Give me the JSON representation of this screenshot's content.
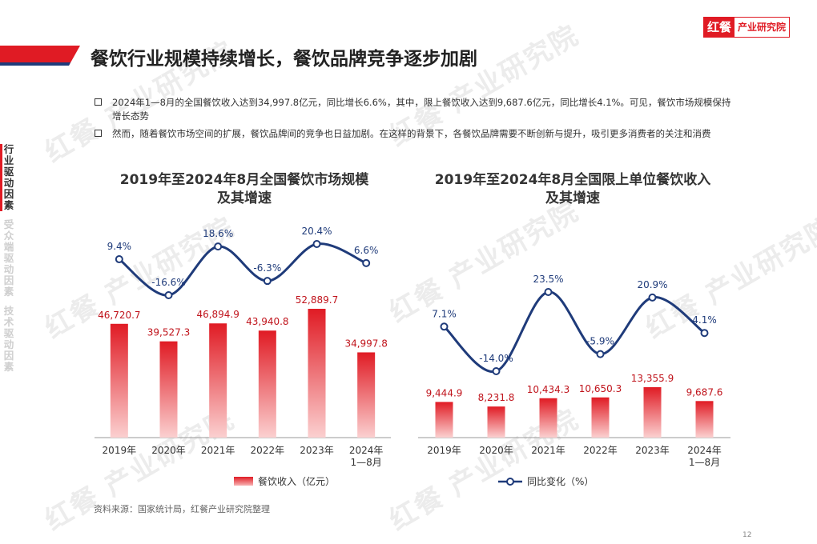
{
  "brand": {
    "logo_mark": "红餐",
    "logo_text": "产业研究院",
    "watermark": "红餐 产业研究院",
    "accent": "#e01b24",
    "navy": "#1f3b7a"
  },
  "header": {
    "title": "餐饮行业规模持续增长，餐饮品牌竞争逐步加剧"
  },
  "bullets": [
    "2024年1—8月的全国餐饮收入达到34,997.8亿元，同比增长6.6%，其中，限上餐饮收入达到9,687.6亿元，同比增长4.1%。可见，餐饮市场规模保持增长态势",
    "然而，随着餐饮市场空间的扩展，餐饮品牌间的竞争也日益加剧。在这样的背景下，各餐饮品牌需要不断创新与提升，吸引更多消费者的关注和消费"
  ],
  "sidebar": {
    "items": [
      {
        "label": "行业驱动因素",
        "active": true
      },
      {
        "label": "受众端驱动因素",
        "active": false
      },
      {
        "label": "技术驱动因素",
        "active": false
      }
    ]
  },
  "chart_data": [
    {
      "type": "bar",
      "title": "2019年至2024年8月全国餐饮市场规模及其增速",
      "title_lines": [
        "2019年至2024年8月全国餐饮市场规模",
        "及其增速"
      ],
      "categories": [
        "2019年",
        "2020年",
        "2021年",
        "2022年",
        "2023年",
        "2024年\n1—8月"
      ],
      "series": [
        {
          "name": "餐饮收入（亿元）",
          "type": "bar",
          "values": [
            46720.7,
            39527.3,
            46894.9,
            43940.8,
            52889.7,
            34997.8
          ],
          "labels": [
            "46,720.7",
            "39,527.3",
            "46,894.9",
            "43,940.8",
            "52,889.7",
            "34,997.8"
          ]
        },
        {
          "name": "同比变化（%）",
          "type": "line",
          "values": [
            9.4,
            -16.6,
            18.6,
            -6.3,
            20.4,
            6.6
          ],
          "labels": [
            "9.4%",
            "-16.6%",
            "18.6%",
            "-6.3%",
            "20.4%",
            "6.6%"
          ]
        }
      ],
      "legend": "bottom"
    },
    {
      "type": "bar",
      "title": "2019年至2024年8月全国限上单位餐饮收入及其增速",
      "title_lines": [
        "2019年至2024年8月全国限上单位餐饮收入",
        "及其增速"
      ],
      "categories": [
        "2019年",
        "2020年",
        "2021年",
        "2022年",
        "2023年",
        "2024年\n1—8月"
      ],
      "series": [
        {
          "name": "餐饮收入（亿元）",
          "type": "bar",
          "values": [
            9444.9,
            8231.8,
            10434.3,
            10650.3,
            13355.9,
            9687.6
          ],
          "labels": [
            "9,444.9",
            "8,231.8",
            "10,434.3",
            "10,650.3",
            "13,355.9",
            "9,687.6"
          ]
        },
        {
          "name": "同比变化（%）",
          "type": "line",
          "values": [
            7.1,
            -14.0,
            23.5,
            -5.9,
            20.9,
            4.1
          ],
          "labels": [
            "7.1%",
            "-14.0%",
            "23.5%",
            "-5.9%",
            "20.9%",
            "4.1%"
          ]
        }
      ],
      "legend": "bottom"
    }
  ],
  "legends": {
    "bar_label": "餐饮收入（亿元）",
    "line_label": "同比变化（%）"
  },
  "footer": {
    "source": "资料来源：国家统计局，红餐产业研究院整理",
    "page": "12"
  }
}
